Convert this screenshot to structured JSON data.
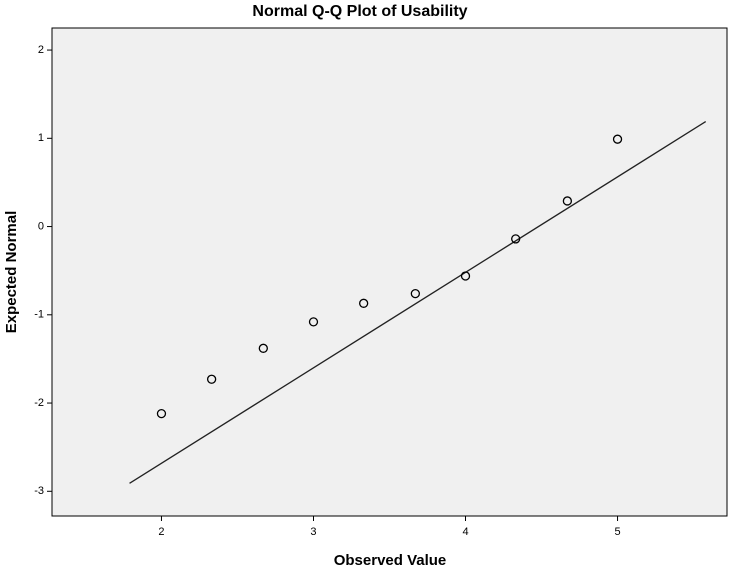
{
  "chart_data": {
    "type": "scatter",
    "title": "Normal Q-Q Plot of Usability",
    "x_label": "Observed Value",
    "y_label": "Expected Normal",
    "series": [
      {
        "name": "Usability",
        "color": "#000000",
        "x": [
          2,
          2.33,
          2.67,
          3,
          3.33,
          3.67,
          4,
          4.33,
          4.67,
          5
        ],
        "values": [
          -2.12,
          -1.73,
          -1.38,
          -1.08,
          -0.87,
          -0.76,
          -0.56,
          -0.14,
          0.29,
          0.99
        ]
      }
    ],
    "line": {
      "x": [
        1.79,
        5.58
      ],
      "y": [
        -2.91,
        1.19
      ],
      "color": "#222222"
    },
    "xlim": [
      1.28,
      5.72
    ],
    "ylim": [
      -3.28,
      2.25
    ],
    "xticks": [
      2,
      3,
      4,
      5
    ],
    "yticks": [
      -3,
      -2,
      -1,
      0,
      1,
      2
    ],
    "background": "#f0f0f0"
  }
}
